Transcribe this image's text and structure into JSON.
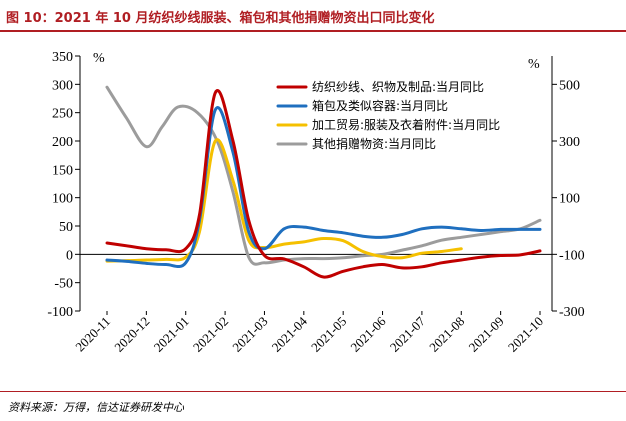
{
  "title": "图 10：2021 年 10 月纺织纱线服装、箱包和其他捐赠物资出口同比变化",
  "source": "资料来源：万得，信达证券研发中心",
  "chart_data": {
    "type": "line",
    "categories": [
      "2020-11",
      "2020-12",
      "2021-01",
      "2021-02",
      "2021-03",
      "2021-04",
      "2021-05",
      "2021-06",
      "2021-07",
      "2021-08",
      "2021-09",
      "2021-10"
    ],
    "left_axis": {
      "unit": "%",
      "ylim": [
        -100,
        350
      ],
      "ticks": [
        -100,
        -50,
        0,
        50,
        100,
        150,
        200,
        250,
        300,
        350
      ]
    },
    "right_axis": {
      "unit": "%",
      "ylim": [
        -300,
        600
      ],
      "ticks": [
        -300,
        -100,
        100,
        300,
        500
      ]
    },
    "grid": false,
    "legend_position": "top-right",
    "series": [
      {
        "name": "纺织纱线、织物及制品:当月同比",
        "axis": "left",
        "color": "#c00000",
        "x": [
          0,
          0.6,
          1,
          1.5,
          2,
          2.35,
          2.75,
          3.2,
          3.6,
          4,
          4.5,
          5,
          5.5,
          6,
          6.5,
          7,
          7.5,
          8,
          8.5,
          9,
          9.5,
          10,
          10.5,
          11
        ],
        "values": [
          20,
          14,
          10,
          8,
          10,
          70,
          285,
          200,
          60,
          -2,
          -8,
          -22,
          -40,
          -30,
          -22,
          -18,
          -24,
          -22,
          -15,
          -10,
          -5,
          -2,
          -1,
          6
        ]
      },
      {
        "name": "箱包及类似容器:当月同比",
        "axis": "left",
        "color": "#1f6fbf",
        "x": [
          0,
          0.6,
          1,
          1.5,
          2,
          2.35,
          2.75,
          3.2,
          3.6,
          4,
          4.5,
          5,
          5.5,
          6,
          6.5,
          7,
          7.5,
          8,
          8.5,
          9,
          9.5,
          10,
          10.5,
          11
        ],
        "values": [
          -10,
          -13,
          -16,
          -18,
          -15,
          60,
          255,
          180,
          40,
          10,
          45,
          48,
          42,
          38,
          32,
          30,
          35,
          45,
          48,
          45,
          42,
          44,
          44,
          44
        ]
      },
      {
        "name": "加工贸易:服装及衣着附件:当月同比",
        "axis": "left",
        "color": "#f5c000",
        "x": [
          0,
          0.6,
          1,
          1.5,
          2,
          2.35,
          2.75,
          3.2,
          3.6,
          4,
          4.5,
          5,
          5.5,
          6,
          6.5,
          7,
          7.5,
          8,
          8.5,
          9
        ],
        "values": [
          -12,
          -11,
          -10,
          -9,
          -5,
          40,
          200,
          130,
          25,
          12,
          18,
          22,
          28,
          24,
          5,
          -4,
          -6,
          2,
          5,
          10
        ]
      },
      {
        "name": "其他捐赠物资:当月同比",
        "axis": "right",
        "color": "#9c9c9c",
        "x": [
          0,
          0.5,
          1,
          1.4,
          1.8,
          2.3,
          2.8,
          3.2,
          3.6,
          4,
          4.5,
          5,
          5.5,
          6,
          6.5,
          7,
          7.5,
          8,
          8.5,
          9,
          9.5,
          10,
          10.5,
          11
        ],
        "values": [
          490,
          380,
          280,
          350,
          420,
          400,
          300,
          120,
          -110,
          -130,
          -120,
          -115,
          -115,
          -112,
          -105,
          -100,
          -85,
          -70,
          -50,
          -40,
          -30,
          -20,
          -10,
          20
        ]
      }
    ]
  }
}
